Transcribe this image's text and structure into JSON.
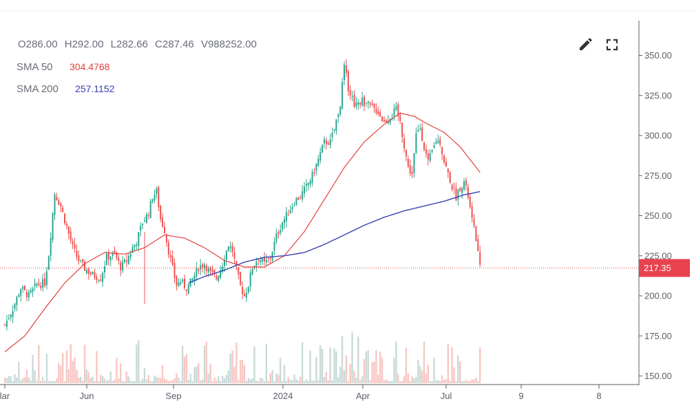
{
  "ohlcv": {
    "open_prefix": "O",
    "open": "286.00",
    "high_prefix": "H",
    "high": "292.00",
    "low_prefix": "L",
    "low": "282.66",
    "close_prefix": "C",
    "close": "287.46",
    "volume_prefix": "V",
    "volume": "988252.00"
  },
  "indicators": [
    {
      "label": "SMA 50",
      "value": "304.4768",
      "color": "#e0413b"
    },
    {
      "label": "SMA 200",
      "value": "257.1152",
      "color": "#3a3fb0"
    }
  ],
  "toolbar": {
    "edit_icon": "pencil-icon",
    "fullscreen_icon": "fullscreen-icon"
  },
  "colors": {
    "up": "#2aa58f",
    "down": "#ef4f4f",
    "up_volume": "#c9dad7",
    "down_volume": "#f7c7c3",
    "last_price_badge": "#e8424f"
  },
  "last_price": {
    "value": 217.35,
    "label": "217.35"
  },
  "chart_data": {
    "type": "candlestick",
    "y_axis": {
      "ticks": [
        "350.00",
        "325.00",
        "300.00",
        "275.00",
        "250.00",
        "225.00",
        "200.00",
        "175.00",
        "150.00"
      ],
      "range": [
        145,
        370
      ]
    },
    "x_axis": {
      "ticks": [
        "lar",
        "Jun",
        "Sep",
        "2024",
        "Apr",
        "Jul",
        "9",
        "8"
      ]
    },
    "price_path": [
      [
        0,
        182
      ],
      [
        4,
        192
      ],
      [
        8,
        205
      ],
      [
        12,
        200
      ],
      [
        16,
        207
      ],
      [
        20,
        208
      ],
      [
        22,
        226
      ],
      [
        25,
        264
      ],
      [
        28,
        256
      ],
      [
        31,
        243
      ],
      [
        34,
        230
      ],
      [
        37,
        222
      ],
      [
        40,
        217
      ],
      [
        44,
        213
      ],
      [
        48,
        211
      ],
      [
        51,
        224
      ],
      [
        55,
        226
      ],
      [
        58,
        218
      ],
      [
        61,
        222
      ],
      [
        64,
        230
      ],
      [
        66,
        234
      ],
      [
        69,
        246
      ],
      [
        72,
        252
      ],
      [
        74,
        262
      ],
      [
        76,
        265
      ],
      [
        78,
        248
      ],
      [
        80,
        241
      ],
      [
        82,
        228
      ],
      [
        84,
        217
      ],
      [
        86,
        207
      ],
      [
        88,
        209
      ],
      [
        91,
        205
      ],
      [
        94,
        210
      ],
      [
        97,
        218
      ],
      [
        100,
        220
      ],
      [
        103,
        214
      ],
      [
        106,
        211
      ],
      [
        109,
        220
      ],
      [
        112,
        232
      ],
      [
        114,
        228
      ],
      [
        116,
        216
      ],
      [
        118,
        206
      ],
      [
        120,
        200
      ],
      [
        122,
        207
      ],
      [
        124,
        218
      ],
      [
        127,
        224
      ],
      [
        130,
        220
      ],
      [
        133,
        224
      ],
      [
        136,
        237
      ],
      [
        139,
        246
      ],
      [
        142,
        252
      ],
      [
        145,
        259
      ],
      [
        148,
        262
      ],
      [
        151,
        268
      ],
      [
        154,
        275
      ],
      [
        157,
        285
      ],
      [
        160,
        296
      ],
      [
        163,
        296
      ],
      [
        165,
        304
      ],
      [
        168,
        320
      ],
      [
        170,
        343
      ],
      [
        172,
        330
      ],
      [
        175,
        320
      ],
      [
        179,
        322
      ],
      [
        183,
        318
      ],
      [
        187,
        315
      ],
      [
        190,
        308
      ],
      [
        193,
        312
      ],
      [
        196,
        316
      ],
      [
        198,
        308
      ],
      [
        200,
        294
      ],
      [
        202,
        280
      ],
      [
        204,
        276
      ],
      [
        206,
        300
      ],
      [
        208,
        305
      ],
      [
        210,
        293
      ],
      [
        212,
        283
      ],
      [
        214,
        290
      ],
      [
        216,
        297
      ],
      [
        218,
        296
      ],
      [
        220,
        284
      ],
      [
        222,
        276
      ],
      [
        224,
        268
      ],
      [
        226,
        262
      ],
      [
        228,
        268
      ],
      [
        230,
        271
      ],
      [
        232,
        262
      ],
      [
        234,
        247
      ],
      [
        236,
        236
      ],
      [
        238,
        217
      ]
    ],
    "sma50": [
      [
        0,
        165
      ],
      [
        10,
        175
      ],
      [
        20,
        192
      ],
      [
        30,
        208
      ],
      [
        40,
        220
      ],
      [
        50,
        227
      ],
      [
        60,
        226
      ],
      [
        70,
        230
      ],
      [
        80,
        238
      ],
      [
        90,
        236
      ],
      [
        100,
        230
      ],
      [
        110,
        222
      ],
      [
        120,
        218
      ],
      [
        130,
        218
      ],
      [
        140,
        225
      ],
      [
        150,
        240
      ],
      [
        160,
        260
      ],
      [
        170,
        280
      ],
      [
        180,
        296
      ],
      [
        190,
        307
      ],
      [
        198,
        314
      ],
      [
        205,
        312
      ],
      [
        212,
        307
      ],
      [
        220,
        302
      ],
      [
        228,
        293
      ],
      [
        233,
        285
      ],
      [
        238,
        277
      ]
    ],
    "sma200": [
      [
        92,
        208
      ],
      [
        100,
        212
      ],
      [
        110,
        216
      ],
      [
        120,
        221
      ],
      [
        130,
        224
      ],
      [
        140,
        225
      ],
      [
        150,
        227
      ],
      [
        160,
        232
      ],
      [
        170,
        238
      ],
      [
        180,
        244
      ],
      [
        190,
        249
      ],
      [
        200,
        253
      ],
      [
        210,
        256
      ],
      [
        220,
        259
      ],
      [
        230,
        263
      ],
      [
        238,
        265
      ]
    ]
  }
}
